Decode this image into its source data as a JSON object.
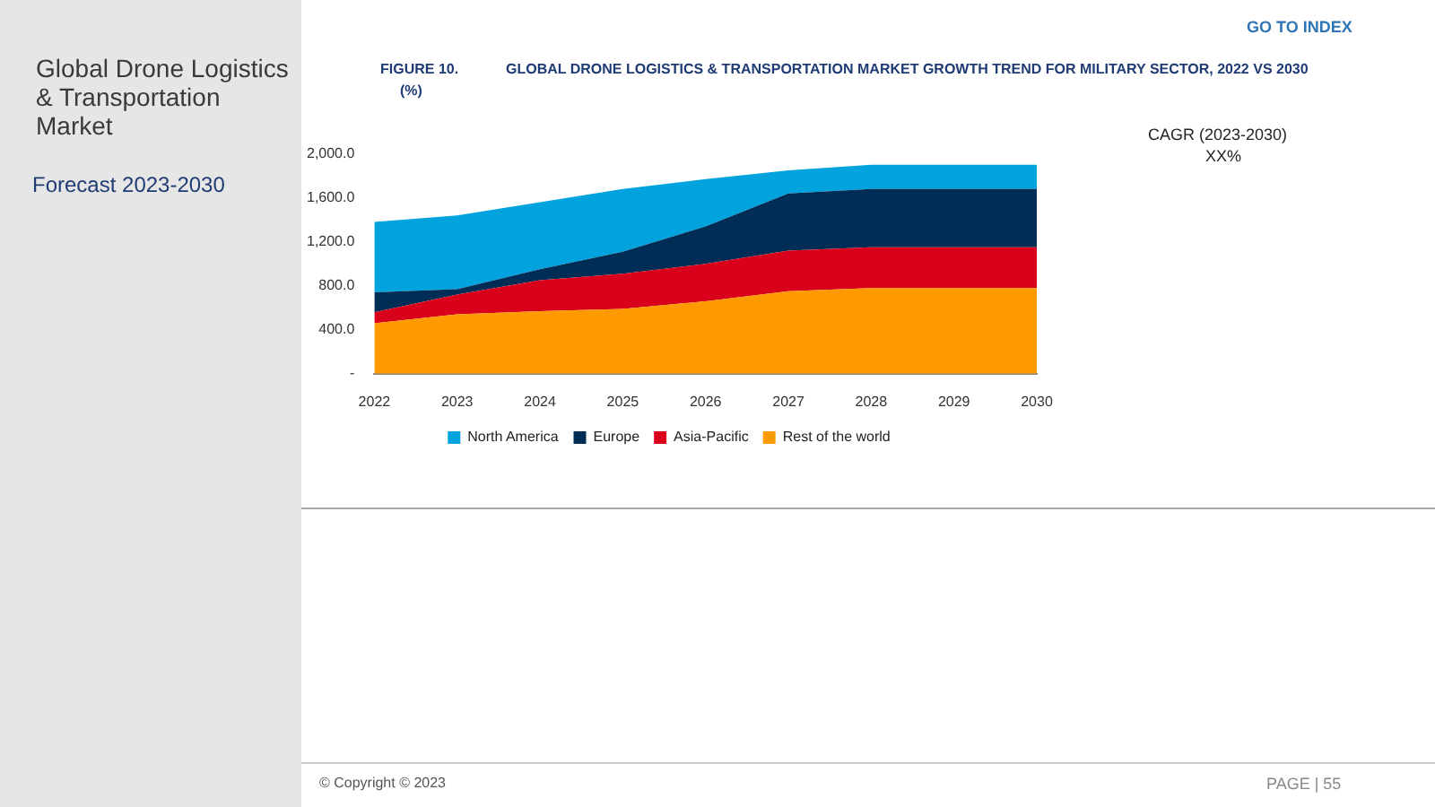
{
  "chart_data": {
    "type": "area",
    "stacked": true,
    "title": "GLOBAL DRONE LOGISTICS & TRANSPORTATION MARKET GROWTH TREND FOR MILITARY SECTOR, 2022 VS 2030",
    "annotations": [
      "FIGURE 10.",
      "(%)",
      "CAGR (2023-2030)",
      "XX%",
      "GO TO INDEX",
      "Global Drone Logistics & Transportation Market",
      "Forecast 2023-2030",
      "PAGE | 55",
      "© Copyright © 2023"
    ],
    "categories": [
      "2022",
      "2023",
      "2024",
      "2025",
      "2026",
      "2027",
      "2028",
      "2029",
      "2030"
    ],
    "series": [
      {
        "name": "Rest of the world",
        "color": "#ff9900",
        "values": [
          460,
          540,
          570,
          590,
          660,
          750,
          780,
          780,
          780
        ]
      },
      {
        "name": "Asia-Pacific",
        "color": "#d9001b",
        "values": [
          100,
          180,
          280,
          320,
          340,
          370,
          370,
          370,
          370
        ]
      },
      {
        "name": "Europe",
        "color": "#002d55",
        "values": [
          180,
          50,
          100,
          200,
          340,
          520,
          530,
          530,
          530
        ]
      },
      {
        "name": "North America",
        "color": "#00a3dd",
        "values": [
          640,
          670,
          610,
          570,
          430,
          210,
          220,
          220,
          220
        ]
      }
    ],
    "ylim": [
      0,
      2000
    ],
    "yticks": [
      {
        "value": 0,
        "label": "-"
      },
      {
        "value": 400,
        "label": "400.0"
      },
      {
        "value": 800,
        "label": "800.0"
      },
      {
        "value": 1200,
        "label": "1,200.0"
      },
      {
        "value": 1600,
        "label": "1,600.0"
      },
      {
        "value": 2000,
        "label": "2,000.0"
      }
    ],
    "grid": false,
    "legend": "bottom"
  }
}
